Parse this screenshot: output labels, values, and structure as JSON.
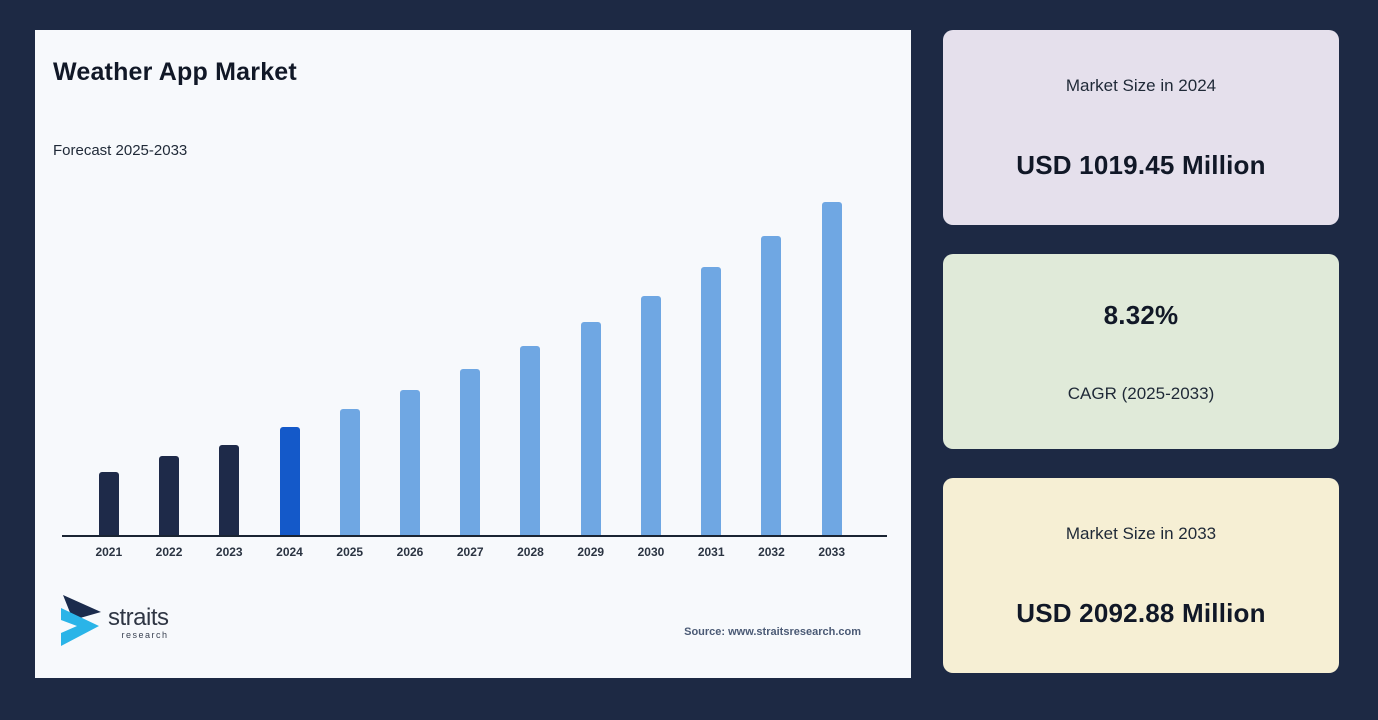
{
  "colors": {
    "background": "#1d2944",
    "panel_bg": "#f7f9fc",
    "axis_line": "#1a2433",
    "bar_historical": "#1e2a49",
    "bar_base_year": "#1459c9",
    "bar_forecast": "#6fa7e3",
    "logo_dark": "#1b2b4c",
    "logo_cyan": "#2ab4e8",
    "card_lavender": "#e5e0ec",
    "card_green": "#e0ead9",
    "card_cream": "#f6efd4"
  },
  "panel": {
    "title": "Weather App Market",
    "subtitle": "Forecast 2025-2033",
    "source": "Source: www.straitsresearch.com",
    "logo": {
      "text": "straits",
      "subtext": "research"
    }
  },
  "chart_data": {
    "type": "bar",
    "title": "Weather App Market",
    "subtitle": "Forecast 2025-2033",
    "categories": [
      "2021",
      "2022",
      "2023",
      "2024",
      "2025",
      "2026",
      "2027",
      "2028",
      "2029",
      "2030",
      "2031",
      "2032",
      "2033"
    ],
    "values": [
      802,
      878,
      931,
      1019.45,
      1104.27,
      1196.15,
      1295.67,
      1403.47,
      1520.24,
      1646.73,
      1783.74,
      1932.14,
      2092.88
    ],
    "unit": "USD Million",
    "ylim": [
      501,
      2200
    ],
    "grid": false,
    "legend": false,
    "bar_colors": [
      "#1e2a49",
      "#1e2a49",
      "#1e2a49",
      "#1459c9",
      "#6fa7e3",
      "#6fa7e3",
      "#6fa7e3",
      "#6fa7e3",
      "#6fa7e3",
      "#6fa7e3",
      "#6fa7e3",
      "#6fa7e3",
      "#6fa7e3"
    ]
  },
  "cards": [
    {
      "label": "Market Size in 2024",
      "value": "USD 1019.45 Million",
      "bg": "#e5e0ec",
      "value_position": "below"
    },
    {
      "label": "CAGR (2025-2033)",
      "value": "8.32%",
      "bg": "#e0ead9",
      "value_position": "above"
    },
    {
      "label": "Market Size in 2033",
      "value": "USD 2092.88 Million",
      "bg": "#f6efd4",
      "value_position": "below"
    }
  ]
}
